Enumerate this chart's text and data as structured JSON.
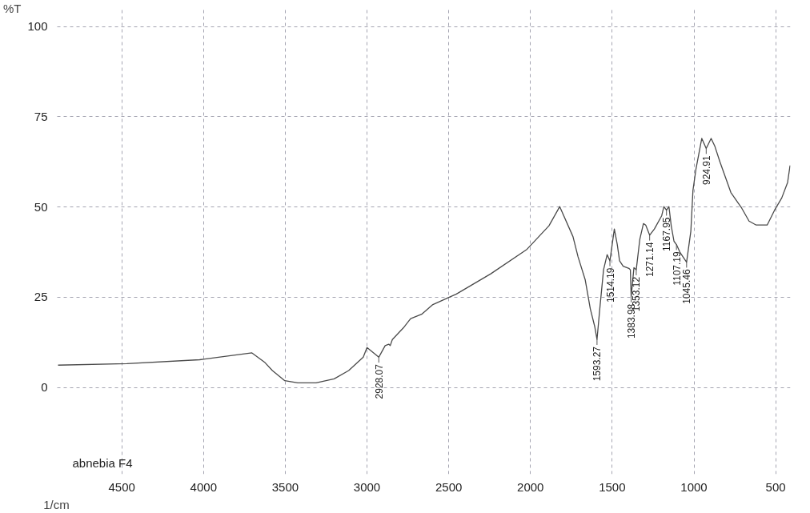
{
  "chart_data": {
    "type": "line",
    "ylabel": "%T",
    "xlabel": "1/cm",
    "x": [
      4890,
      4469,
      4024,
      3704,
      3624,
      3579,
      3503,
      3423,
      3312,
      3201,
      3112,
      3023,
      3000,
      2928,
      2889,
      2867,
      2858,
      2845,
      2778,
      2733,
      2666,
      2600,
      2453,
      2243,
      2021,
      1887,
      1821,
      1740,
      1709,
      1665,
      1634,
      1607,
      1593,
      1576,
      1553,
      1531,
      1514,
      1487,
      1469,
      1455,
      1433,
      1398,
      1389,
      1384,
      1367,
      1353,
      1331,
      1309,
      1295,
      1271,
      1242,
      1197,
      1184,
      1168,
      1153,
      1139,
      1122,
      1107,
      1086,
      1045,
      1019,
      1006,
      988,
      952,
      925,
      895,
      872,
      841,
      774,
      708,
      663,
      619,
      552,
      507,
      463,
      427,
      412
    ],
    "series": [
      {
        "color": "#4a4a4a",
        "values": [
          6.2,
          6.6,
          7.7,
          9.6,
          6.9,
          4.7,
          1.9,
          1.3,
          1.3,
          2.4,
          4.7,
          8.4,
          11.1,
          8.4,
          11.6,
          12.0,
          11.6,
          13.3,
          16.5,
          19.1,
          20.3,
          22.9,
          25.9,
          31.5,
          38.3,
          44.8,
          50.1,
          41.8,
          36.2,
          29.8,
          21.8,
          16.9,
          13.3,
          21.8,
          32.6,
          36.8,
          35.1,
          43.9,
          39.6,
          35.1,
          33.6,
          33.0,
          32.6,
          25.1,
          33.2,
          32.6,
          41.1,
          45.4,
          45.0,
          42.2,
          43.9,
          47.6,
          50.1,
          49.1,
          50.1,
          44.8,
          40.5,
          39.6,
          37.5,
          34.7,
          43.3,
          54.6,
          60.4,
          69.0,
          66.2,
          69.0,
          66.8,
          62.5,
          54.0,
          49.7,
          46.1,
          45.0,
          45.0,
          49.1,
          52.5,
          56.8,
          61.5
        ]
      }
    ],
    "xlim": [
      4900,
      410
    ],
    "xticks": [
      4500,
      4000,
      3500,
      3000,
      2500,
      2000,
      1500,
      1000,
      500
    ],
    "ylim": [
      -24,
      105
    ],
    "yticks": [
      0,
      25,
      50,
      75,
      100
    ],
    "grid": true,
    "line_style": "solid",
    "marker": "none",
    "annotations": [
      {
        "text": "2928.07",
        "x": 2928,
        "y": 8.4
      },
      {
        "text": "1593.27",
        "x": 1593,
        "y": 13.3
      },
      {
        "text": "1514.19",
        "x": 1514,
        "y": 35.1
      },
      {
        "text": "1383.98",
        "x": 1384,
        "y": 25.1
      },
      {
        "text": "1353.12",
        "x": 1353,
        "y": 32.6
      },
      {
        "text": "1271.14",
        "x": 1271,
        "y": 42.2
      },
      {
        "text": "1167.95",
        "x": 1168,
        "y": 49.1
      },
      {
        "text": "1107.19",
        "x": 1107,
        "y": 39.6
      },
      {
        "text": "1045.46",
        "x": 1045,
        "y": 34.7
      },
      {
        "text": "924.91",
        "x": 925,
        "y": 66.2
      },
      "abnebia F4"
    ]
  }
}
